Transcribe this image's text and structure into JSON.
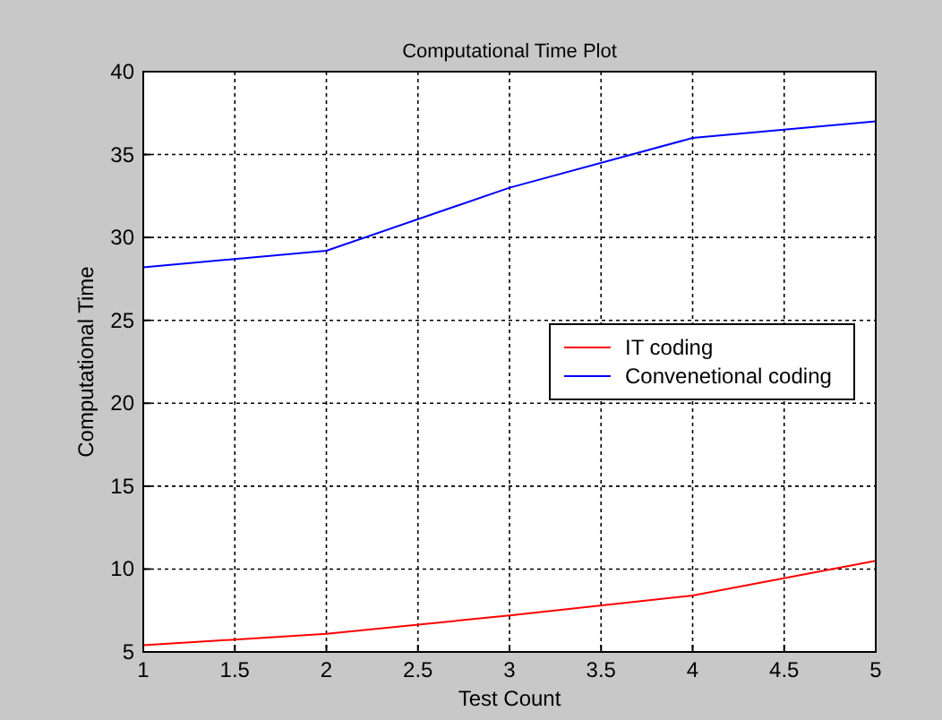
{
  "chart_data": {
    "type": "line",
    "title": "Computational Time Plot",
    "xlabel": "Test Count",
    "ylabel": "Computational Time",
    "x": [
      1,
      2,
      3,
      4,
      5
    ],
    "series": [
      {
        "name": "IT coding",
        "color": "#ff0000",
        "values": [
          5.4,
          6.1,
          7.2,
          8.4,
          10.5
        ]
      },
      {
        "name": "Convenetional coding",
        "color": "#0000ff",
        "values": [
          28.2,
          29.2,
          33.0,
          36.0,
          37.0
        ]
      }
    ],
    "xlim": [
      1,
      5
    ],
    "xticks": [
      1,
      1.5,
      2,
      2.5,
      3,
      3.5,
      4,
      4.5,
      5
    ],
    "ylim": [
      5,
      40
    ],
    "yticks": [
      5,
      10,
      15,
      20,
      25,
      30,
      35,
      40
    ],
    "grid": true,
    "legend": "right",
    "marker": "none",
    "line_style": "solid"
  }
}
